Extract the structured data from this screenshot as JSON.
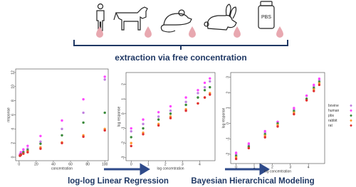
{
  "header": {
    "pbs": "PBS",
    "extraction": "extraction via free concentration",
    "step1": "log-log Linear Regression",
    "step2": "Bayesian Hierarchical Modeling"
  },
  "chart_data": [
    {
      "type": "scatter",
      "xlabel": "concentration",
      "ylabel": "response",
      "xlim": [
        -4,
        104
      ],
      "ylim": [
        -0.5,
        12.5
      ],
      "xticks": [
        0,
        20,
        40,
        60,
        80,
        100
      ],
      "yticks": [
        0,
        2,
        4,
        6,
        8,
        10,
        12
      ],
      "x": [
        1,
        2,
        5,
        10,
        25,
        50,
        75,
        100
      ],
      "series": [
        {
          "color": "#c080e0",
          "values": [
            0.3,
            0.5,
            0.8,
            1.2,
            2.2,
            4.0,
            6.3,
            11.0
          ]
        },
        {
          "color": "#ff44ff",
          "values": [
            0.4,
            0.7,
            1.1,
            1.6,
            3.0,
            5.2,
            8.2,
            11.4
          ]
        },
        {
          "color": "#3a8a3a",
          "values": [
            0.2,
            0.4,
            0.7,
            1.0,
            1.9,
            3.1,
            4.9,
            6.3
          ]
        },
        {
          "color": "#ff9933",
          "values": [
            0.2,
            0.3,
            0.5,
            0.8,
            1.4,
            2.1,
            3.1,
            4.0
          ]
        },
        {
          "color": "#e03030",
          "values": [
            0.2,
            0.3,
            0.5,
            0.7,
            1.2,
            2.0,
            2.9,
            3.8
          ]
        }
      ]
    },
    {
      "type": "scatter",
      "xlabel": "log concentration",
      "ylabel": "log response",
      "xlim": [
        -0.3,
        4.9
      ],
      "ylim": [
        -3.2,
        2.8
      ],
      "xticks": [
        0,
        1,
        2,
        3,
        4
      ],
      "yticks": [
        -3,
        -2,
        -1,
        0,
        1,
        2
      ],
      "x": [
        0,
        0.7,
        1.6,
        2.3,
        3.2,
        3.9,
        4.3,
        4.6
      ],
      "series": [
        {
          "color": "#c080e0",
          "values": [
            -1.2,
            -0.7,
            -0.2,
            0.2,
            0.8,
            1.4,
            1.8,
            2.2
          ]
        },
        {
          "color": "#ff44ff",
          "values": [
            -1.0,
            -0.4,
            0.1,
            0.5,
            1.1,
            1.6,
            2.1,
            2.4
          ]
        },
        {
          "color": "#3a8a3a",
          "values": [
            -1.6,
            -1.0,
            -0.4,
            0.0,
            0.6,
            1.1,
            1.6,
            1.8
          ]
        },
        {
          "color": "#ff9933",
          "values": [
            -2.0,
            -1.3,
            -0.7,
            -0.2,
            0.3,
            0.7,
            1.1,
            1.4
          ]
        },
        {
          "color": "#e03030",
          "values": [
            -2.2,
            -1.4,
            -0.8,
            -0.3,
            0.2,
            0.7,
            1.1,
            1.3
          ]
        }
      ]
    },
    {
      "type": "scatter",
      "xlabel": "log concentration",
      "ylabel": "log response",
      "legend": "right",
      "xlim": [
        -0.3,
        4.9
      ],
      "ylim": [
        -2.6,
        3.3
      ],
      "xticks": [
        0,
        1,
        2,
        3,
        4
      ],
      "yticks": [
        -2,
        -1,
        0,
        1,
        2,
        3
      ],
      "x": [
        0,
        0.7,
        1.6,
        2.3,
        3.2,
        3.9,
        4.3,
        4.6
      ],
      "series": [
        {
          "name": "bovine",
          "color": "#c080e0",
          "values": [
            -2.0,
            -1.4,
            -0.6,
            0.1,
            0.9,
            1.8,
            2.4,
            2.8
          ]
        },
        {
          "name": "human",
          "color": "#ff44ff",
          "values": [
            -1.9,
            -1.3,
            -0.5,
            0.1,
            1.0,
            1.8,
            2.5,
            2.9
          ]
        },
        {
          "name": "pbs",
          "color": "#3a8a3a",
          "values": [
            -2.1,
            -1.5,
            -0.7,
            0.0,
            0.8,
            1.6,
            2.3,
            2.7
          ]
        },
        {
          "name": "rabbit",
          "color": "#ff9933",
          "values": [
            -2.2,
            -1.6,
            -0.8,
            -0.1,
            0.7,
            1.5,
            2.2,
            2.6
          ]
        },
        {
          "name": "rat",
          "color": "#e03030",
          "values": [
            -2.3,
            -1.6,
            -0.9,
            -0.2,
            0.6,
            1.5,
            2.1,
            2.5
          ]
        }
      ]
    }
  ]
}
